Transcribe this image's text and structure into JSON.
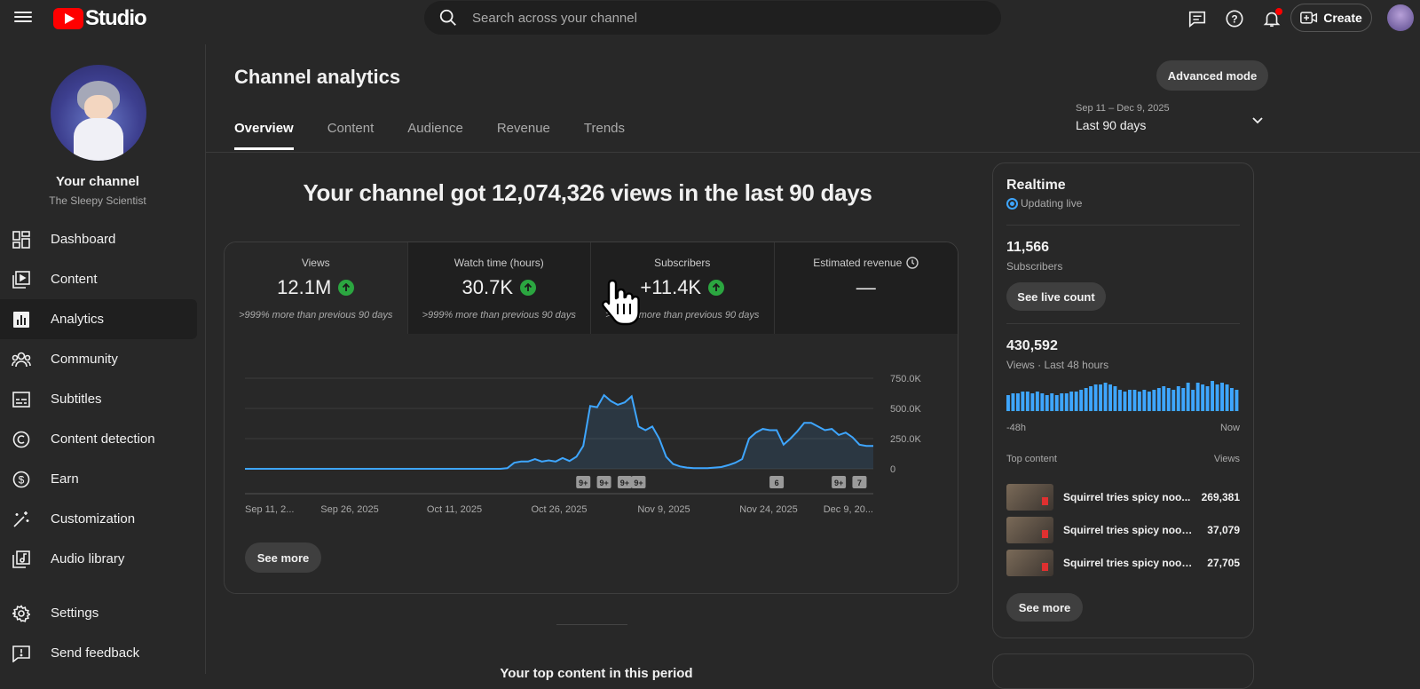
{
  "header": {
    "logo_text": "Studio",
    "search_placeholder": "Search across your channel",
    "create_label": "Create"
  },
  "sidebar": {
    "channel_title": "Your channel",
    "channel_name": "The Sleepy Scientist",
    "items": [
      {
        "label": "Dashboard",
        "icon": "dashboard-icon"
      },
      {
        "label": "Content",
        "icon": "content-icon"
      },
      {
        "label": "Analytics",
        "icon": "analytics-icon"
      },
      {
        "label": "Community",
        "icon": "community-icon"
      },
      {
        "label": "Subtitles",
        "icon": "subtitles-icon"
      },
      {
        "label": "Content detection",
        "icon": "copyright-icon"
      },
      {
        "label": "Earn",
        "icon": "dollar-icon"
      },
      {
        "label": "Customization",
        "icon": "magic-wand-icon"
      },
      {
        "label": "Audio library",
        "icon": "audio-library-icon"
      }
    ],
    "bottom_items": [
      {
        "label": "Settings",
        "icon": "gear-icon"
      },
      {
        "label": "Send feedback",
        "icon": "feedback-icon"
      }
    ]
  },
  "main": {
    "title": "Channel analytics",
    "advanced_label": "Advanced mode",
    "tabs": [
      "Overview",
      "Content",
      "Audience",
      "Revenue",
      "Trends"
    ],
    "date_range": {
      "dates": "Sep 11 – Dec 9, 2025",
      "label": "Last 90 days"
    },
    "headline": "Your channel got 12,074,326 views in the last 90 days",
    "metrics": [
      {
        "label": "Views",
        "value": "12.1M",
        "delta": ">999% more than previous 90 days"
      },
      {
        "label": "Watch time (hours)",
        "value": "30.7K",
        "delta": ">999% more than previous 90 days"
      },
      {
        "label": "Subscribers",
        "value": "+11.4K",
        "delta": ">999% more than previous 90 days"
      },
      {
        "label": "Estimated revenue",
        "value": "—",
        "delta": ""
      }
    ],
    "see_more_label": "See more",
    "top_content_heading": "Your top content in this period"
  },
  "chart_data": {
    "type": "area",
    "series": [
      {
        "values": [
          0,
          0,
          0,
          0,
          0,
          0,
          0,
          0,
          0,
          0,
          0,
          0,
          0,
          0,
          0,
          0,
          0,
          0,
          0,
          0,
          0,
          0,
          0,
          0,
          0,
          0,
          0,
          0,
          0,
          0,
          0,
          0,
          0,
          0,
          0,
          0,
          0,
          0,
          5000,
          50000,
          60000,
          60000,
          80000,
          60000,
          70000,
          60000,
          90000,
          65000,
          100000,
          190000,
          520000,
          510000,
          610000,
          560000,
          530000,
          550000,
          600000,
          350000,
          320000,
          350000,
          250000,
          100000,
          40000,
          20000,
          10000,
          5000,
          5000,
          5000,
          10000,
          15000,
          30000,
          50000,
          80000,
          250000,
          300000,
          330000,
          320000,
          320000,
          200000,
          250000,
          310000,
          380000,
          380000,
          350000,
          320000,
          330000,
          280000,
          300000,
          260000,
          200000,
          190000,
          190000
        ]
      }
    ],
    "x_ticks": [
      "Sep 11, 2...",
      "Sep 26, 2025",
      "Oct 11, 2025",
      "Oct 26, 2025",
      "Nov 9, 2025",
      "Nov 24, 2025",
      "Dec 9, 20..."
    ],
    "y_ticks": [
      "750.0K",
      "500.0K",
      "250.0K",
      "0"
    ],
    "ylim": [
      0,
      750000
    ],
    "markers": [
      {
        "label": "9+",
        "index": 49
      },
      {
        "label": "9+",
        "index": 52
      },
      {
        "label": "9+",
        "index": 55
      },
      {
        "label": "9+",
        "index": 57
      },
      {
        "label": "6",
        "index": 77
      },
      {
        "label": "9+",
        "index": 86
      },
      {
        "label": "7",
        "index": 89
      }
    ],
    "line_color": "#3ea6ff",
    "grid": true
  },
  "realtime": {
    "title": "Realtime",
    "status": "Updating live",
    "subscribers": "11,566",
    "subscribers_label": "Subscribers",
    "live_count_label": "See live count",
    "views": "430,592",
    "views_label": "Views · Last 48 hours",
    "bars": [
      9,
      10,
      10,
      11,
      11,
      10,
      11,
      10,
      9,
      10,
      9,
      10,
      10,
      11,
      11,
      12,
      13,
      14,
      15,
      15,
      16,
      15,
      14,
      12,
      11,
      12,
      12,
      11,
      12,
      11,
      12,
      13,
      14,
      13,
      12,
      14,
      13,
      16,
      12,
      16,
      15,
      14,
      17,
      15,
      16,
      15,
      13,
      12
    ],
    "axis_start": "-48h",
    "axis_end": "Now",
    "top_content_label": "Top content",
    "views_col_label": "Views",
    "top_content": [
      {
        "title": "Squirrel tries spicy noo...",
        "views": "269,381"
      },
      {
        "title": "Squirrel tries spicy nood...",
        "views": "37,079"
      },
      {
        "title": "Squirrel tries spicy nood...",
        "views": "27,705"
      }
    ],
    "see_more_label": "See more",
    "accent": "#3ea6ff"
  }
}
